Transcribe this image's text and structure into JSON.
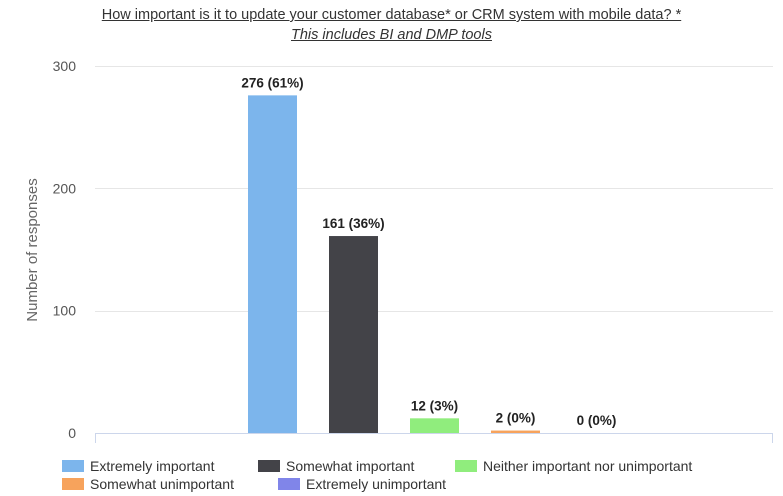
{
  "chart_data": {
    "type": "bar",
    "title": "How important is it to update your customer database* or CRM system with mobile data?  *",
    "subtitle": "This includes BI and DMP tools",
    "ylabel": "Number of responses",
    "xlabel": "",
    "ylim": [
      0,
      300
    ],
    "yticks": [
      "0",
      "100",
      "200",
      "300"
    ],
    "grid": true,
    "legend_position": "bottom",
    "categories": [
      "Extremely important",
      "Somewhat important",
      "Neither important nor unimportant",
      "Somewhat unimportant",
      "Extremely unimportant"
    ],
    "values": [
      276,
      161,
      12,
      2,
      0
    ],
    "data_labels": [
      "276 (61%)",
      "161 (36%)",
      "12 (3%)",
      "2 (0%)",
      "0 (0%)"
    ],
    "colors": [
      "#7cb5ec",
      "#434348",
      "#90ed7d",
      "#f7a35c",
      "#8085e9"
    ]
  }
}
